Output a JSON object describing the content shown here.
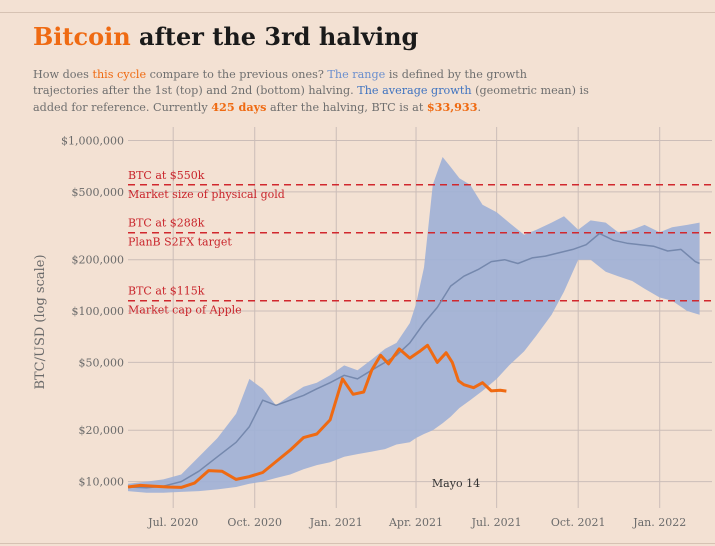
{
  "title_accent": "Bitcoin",
  "title_rest": " after the 3rd halving",
  "subtitle": {
    "p1": "How does ",
    "this_cycle": "this cycle",
    "p2": " compare to the previous ones? ",
    "the_range": "The range",
    "p3": " is defined by the growth trajectories after the 1st (top) and 2nd (bottom) halving. ",
    "avg_growth": "The average growth",
    "p4": " (geometric mean) is added for reference. Currently ",
    "days": "425 days",
    "p5": " after the halving, BTC is at ",
    "price": "$33,933",
    "p6": "."
  },
  "chart_data": {
    "type": "line",
    "title": "Bitcoin after the 3rd halving",
    "ylabel": "BTC/USD (log scale)",
    "y_scale": "log",
    "ylim": [
      7000,
      1200000
    ],
    "xlim": [
      "2020-05-11",
      "2022-03-01"
    ],
    "y_ticks": [
      {
        "value": 10000,
        "label": "$10,000"
      },
      {
        "value": 20000,
        "label": "$20,000"
      },
      {
        "value": 50000,
        "label": "$50,000"
      },
      {
        "value": 100000,
        "label": "$100,000"
      },
      {
        "value": 200000,
        "label": "$200,000"
      },
      {
        "value": 500000,
        "label": "$500,000"
      },
      {
        "value": 1000000,
        "label": "$1,000,000"
      }
    ],
    "x_ticks": [
      {
        "date": "2020-07-01",
        "label": "Jul. 2020"
      },
      {
        "date": "2020-10-01",
        "label": "Oct. 2020"
      },
      {
        "date": "2021-01-01",
        "label": "Jan. 2021"
      },
      {
        "date": "2021-04-01",
        "label": "Apr. 2021"
      },
      {
        "date": "2021-07-01",
        "label": "Jul. 2021"
      },
      {
        "date": "2021-10-01",
        "label": "Oct. 2021"
      },
      {
        "date": "2022-01-01",
        "label": "Jan. 2022"
      }
    ],
    "x_annotation": "Mayo 14",
    "reference_lines": [
      {
        "value": 550000,
        "label_above": "BTC at $550k",
        "label_below": "Market size of physical gold",
        "color": "#d1282e"
      },
      {
        "value": 288000,
        "label_above": "BTC at $288k",
        "label_below": "PlanB S2FX target",
        "color": "#d1282e"
      },
      {
        "value": 115000,
        "label_above": "BTC at $115k",
        "label_below": "Market cap of Apple",
        "color": "#d1282e"
      }
    ],
    "range_band": {
      "color": "#9fb0d6",
      "x": [
        "2020-05-11",
        "2020-06-01",
        "2020-06-20",
        "2020-07-10",
        "2020-07-30",
        "2020-08-20",
        "2020-09-10",
        "2020-09-25",
        "2020-10-10",
        "2020-10-25",
        "2020-11-10",
        "2020-11-25",
        "2020-12-10",
        "2020-12-25",
        "2021-01-10",
        "2021-01-25",
        "2021-02-10",
        "2021-02-25",
        "2021-03-10",
        "2021-03-25",
        "2021-04-01",
        "2021-04-10",
        "2021-04-20",
        "2021-05-01",
        "2021-05-10",
        "2021-05-20",
        "2021-06-01",
        "2021-06-15",
        "2021-07-01",
        "2021-07-15",
        "2021-08-01",
        "2021-08-15",
        "2021-09-01",
        "2021-09-15",
        "2021-10-01",
        "2021-10-15",
        "2021-11-01",
        "2021-11-15",
        "2021-12-01",
        "2021-12-15",
        "2022-01-01",
        "2022-01-15",
        "2022-02-01",
        "2022-02-15"
      ],
      "upper": [
        9700,
        10000,
        10300,
        11000,
        14000,
        18000,
        25000,
        40000,
        35000,
        28000,
        32000,
        36000,
        38000,
        42000,
        48000,
        45000,
        52000,
        60000,
        65000,
        85000,
        110000,
        180000,
        550000,
        800000,
        700000,
        600000,
        550000,
        420000,
        380000,
        330000,
        280000,
        300000,
        330000,
        360000,
        300000,
        340000,
        330000,
        290000,
        300000,
        320000,
        290000,
        310000,
        320000,
        330000
      ],
      "lower": [
        8800,
        8600,
        8600,
        8700,
        8800,
        9000,
        9300,
        9700,
        10000,
        10500,
        11000,
        11800,
        12500,
        13000,
        14000,
        14500,
        15000,
        15500,
        16500,
        17000,
        18000,
        19000,
        20000,
        22000,
        24000,
        27000,
        30000,
        34000,
        40000,
        48000,
        58000,
        72000,
        95000,
        130000,
        200000,
        200000,
        170000,
        160000,
        150000,
        135000,
        120000,
        115000,
        100000,
        95000
      ]
    },
    "series": [
      {
        "name": "The average growth",
        "color": "#7588ad",
        "x": [
          "2020-05-11",
          "2020-06-01",
          "2020-06-20",
          "2020-07-10",
          "2020-07-30",
          "2020-08-20",
          "2020-09-10",
          "2020-09-25",
          "2020-10-10",
          "2020-10-25",
          "2020-11-10",
          "2020-11-25",
          "2020-12-10",
          "2020-12-25",
          "2021-01-10",
          "2021-01-25",
          "2021-02-10",
          "2021-02-25",
          "2021-03-10",
          "2021-03-25",
          "2021-04-10",
          "2021-04-25",
          "2021-05-10",
          "2021-05-25",
          "2021-06-10",
          "2021-06-25",
          "2021-07-10",
          "2021-07-25",
          "2021-08-10",
          "2021-08-25",
          "2021-09-10",
          "2021-09-25",
          "2021-10-10",
          "2021-10-25",
          "2021-11-10",
          "2021-11-25",
          "2021-12-10",
          "2021-12-25",
          "2022-01-10",
          "2022-01-25",
          "2022-02-10",
          "2022-02-15"
        ],
        "values": [
          9300,
          9200,
          9400,
          10000,
          11500,
          14000,
          17000,
          21000,
          30000,
          28000,
          30000,
          32000,
          35000,
          38000,
          42000,
          40000,
          45000,
          50000,
          55000,
          65000,
          85000,
          105000,
          140000,
          160000,
          175000,
          195000,
          200000,
          190000,
          205000,
          210000,
          220000,
          230000,
          245000,
          285000,
          260000,
          250000,
          245000,
          240000,
          225000,
          230000,
          195000,
          190000
        ]
      },
      {
        "name": "this cycle",
        "color": "#ef6a12",
        "x": [
          "2020-05-11",
          "2020-05-25",
          "2020-06-10",
          "2020-06-25",
          "2020-07-10",
          "2020-07-25",
          "2020-08-10",
          "2020-08-25",
          "2020-09-10",
          "2020-09-25",
          "2020-10-10",
          "2020-10-25",
          "2020-11-10",
          "2020-11-25",
          "2020-12-10",
          "2020-12-25",
          "2021-01-08",
          "2021-01-20",
          "2021-02-01",
          "2021-02-10",
          "2021-02-20",
          "2021-03-01",
          "2021-03-13",
          "2021-03-25",
          "2021-04-05",
          "2021-04-14",
          "2021-04-25",
          "2021-05-05",
          "2021-05-12",
          "2021-05-19",
          "2021-05-25",
          "2021-06-05",
          "2021-06-15",
          "2021-06-25",
          "2021-07-05",
          "2021-07-12"
        ],
        "values": [
          9300,
          9500,
          9400,
          9300,
          9250,
          9800,
          11600,
          11500,
          10300,
          10700,
          11300,
          13100,
          15300,
          18100,
          19000,
          23000,
          40000,
          32500,
          33500,
          45000,
          55000,
          49000,
          60000,
          53000,
          58000,
          63000,
          50000,
          57000,
          50000,
          39000,
          37000,
          35500,
          38000,
          34000,
          34300,
          33933
        ]
      }
    ]
  }
}
